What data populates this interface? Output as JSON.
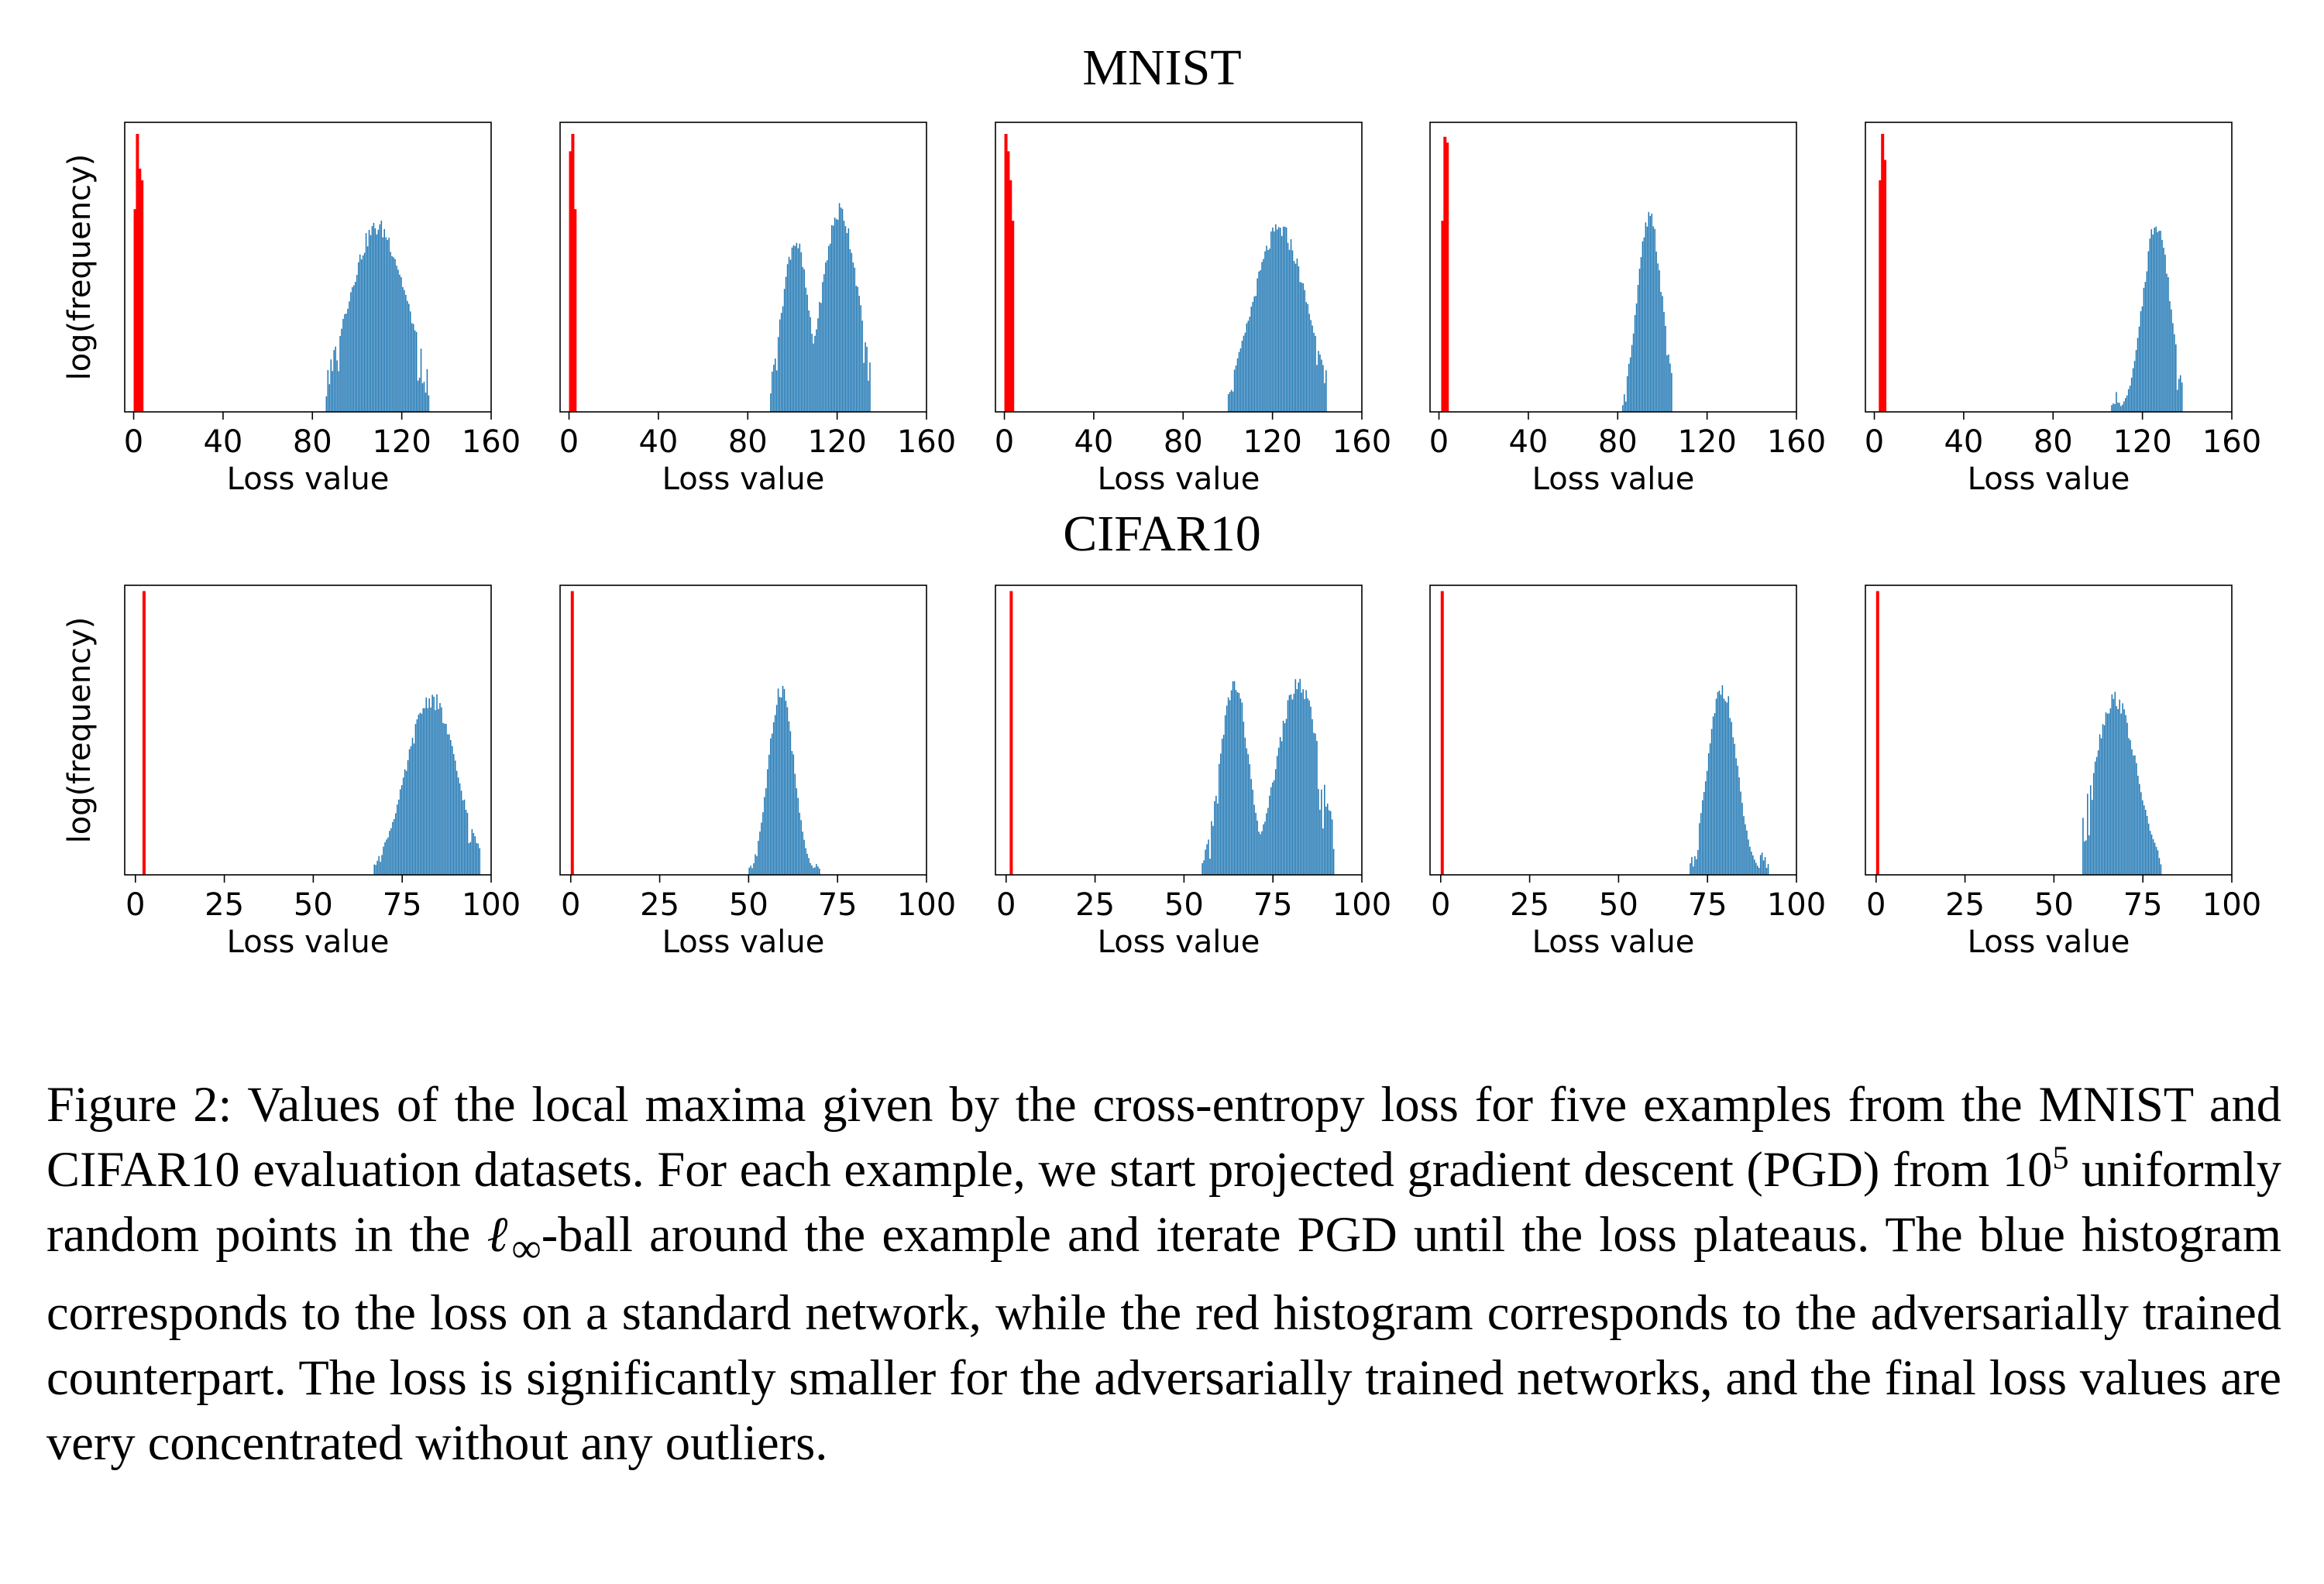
{
  "figure": {
    "row_titles": [
      "MNIST",
      "CIFAR10"
    ],
    "ylabel": "log(frequency)",
    "xlabel": "Loss value",
    "colors": {
      "standard": "#1f77b4",
      "adversarial": "#ff0000"
    },
    "caption": {
      "label": "Figure 2:",
      "part1": "Values of the local maxima given by the cross-entropy loss for five examples from the MNIST and CIFAR10 evaluation datasets. For each example, we start projected gradient descent (PGD) from 10",
      "sup": "5",
      "part2": " uniformly random points in the ",
      "linf_l": "ℓ",
      "linf_inf": "∞",
      "part3": "-ball around the example and iterate PGD until the loss plateaus. The blue histogram corresponds to the loss on a standard network, while the red histogram corresponds to the adversarially trained counterpart. The loss is significantly smaller for the adversarially trained networks, and the final loss values are very concentrated without any outliers."
    }
  },
  "chart_data": [
    {
      "type": "histogram",
      "group": "MNIST",
      "example": 1,
      "xlabel": "Loss value",
      "ylabel": "log(frequency)",
      "xlim": [
        -4,
        160
      ],
      "xticks": [
        0,
        40,
        80,
        120,
        160
      ],
      "ylim": [
        0,
        1
      ],
      "grid": false,
      "series": [
        {
          "color": "#ff0000",
          "bins": [
            [
              0,
              0.7
            ],
            [
              1,
              0.96
            ],
            [
              2,
              0.84
            ],
            [
              3,
              0.8
            ]
          ]
        },
        {
          "color": "#1f77b4",
          "range": [
            86,
            132
          ],
          "peaks": [
            {
              "center": 109,
              "width": 13,
              "height": 0.67
            }
          ],
          "bins": []
        }
      ]
    },
    {
      "type": "histogram",
      "group": "MNIST",
      "example": 2,
      "xlabel": "Loss value",
      "xlim": [
        -4,
        160
      ],
      "xticks": [
        0,
        40,
        80,
        120,
        160
      ],
      "ylim": [
        0,
        1
      ],
      "grid": false,
      "series": [
        {
          "color": "#ff0000",
          "bins": [
            [
              0,
              0.9
            ],
            [
              1,
              0.96
            ],
            [
              2,
              0.7
            ]
          ]
        },
        {
          "color": "#1f77b4",
          "range": [
            90,
            135
          ],
          "peaks": [
            {
              "center": 101,
              "width": 6,
              "height": 0.62
            },
            {
              "center": 121,
              "width": 8,
              "height": 0.73
            }
          ],
          "bins": []
        }
      ]
    },
    {
      "type": "histogram",
      "group": "MNIST",
      "example": 3,
      "xlabel": "Loss value",
      "xlim": [
        -4,
        160
      ],
      "xticks": [
        0,
        40,
        80,
        120,
        160
      ],
      "ylim": [
        0,
        1
      ],
      "grid": false,
      "series": [
        {
          "color": "#ff0000",
          "bins": [
            [
              0,
              0.96
            ],
            [
              1,
              0.9
            ],
            [
              2,
              0.8
            ],
            [
              3,
              0.66
            ]
          ]
        },
        {
          "color": "#1f77b4",
          "range": [
            100,
            144
          ],
          "peaks": [
            {
              "center": 123,
              "width": 12,
              "height": 0.66
            }
          ],
          "bins": []
        }
      ]
    },
    {
      "type": "histogram",
      "group": "MNIST",
      "example": 4,
      "xlabel": "Loss value",
      "xlim": [
        -4,
        160
      ],
      "xticks": [
        0,
        40,
        80,
        120,
        160
      ],
      "ylim": [
        0,
        1
      ],
      "grid": false,
      "series": [
        {
          "color": "#ff0000",
          "bins": [
            [
              1,
              0.66
            ],
            [
              2,
              0.95
            ],
            [
              3,
              0.93
            ]
          ]
        },
        {
          "color": "#1f77b4",
          "range": [
            82,
            104
          ],
          "peaks": [
            {
              "center": 94,
              "width": 5.5,
              "height": 0.7
            }
          ],
          "bins": []
        }
      ]
    },
    {
      "type": "histogram",
      "group": "MNIST",
      "example": 5,
      "xlabel": "Loss value",
      "xlim": [
        -4,
        160
      ],
      "xticks": [
        0,
        40,
        80,
        120,
        160
      ],
      "ylim": [
        0,
        1
      ],
      "grid": false,
      "series": [
        {
          "color": "#ff0000",
          "bins": [
            [
              2,
              0.8
            ],
            [
              3,
              0.96
            ],
            [
              4,
              0.87
            ]
          ]
        },
        {
          "color": "#1f77b4",
          "range": [
            106,
            138
          ],
          "peaks": [
            {
              "center": 126,
              "width": 6,
              "height": 0.69
            }
          ],
          "bins": []
        }
      ]
    },
    {
      "type": "histogram",
      "group": "CIFAR10",
      "example": 1,
      "xlabel": "Loss value",
      "ylabel": "log(frequency)",
      "xlim": [
        -3,
        100
      ],
      "xticks": [
        0,
        25,
        50,
        75,
        100
      ],
      "ylim": [
        0,
        1
      ],
      "grid": false,
      "series": [
        {
          "color": "#ff0000",
          "bins": [
            [
              2,
              0.98
            ]
          ]
        },
        {
          "color": "#1f77b4",
          "range": [
            67,
            97
          ],
          "peaks": [
            {
              "center": 83,
              "width": 7,
              "height": 0.64
            }
          ],
          "bins": []
        }
      ]
    },
    {
      "type": "histogram",
      "group": "CIFAR10",
      "example": 2,
      "xlabel": "Loss value",
      "xlim": [
        -3,
        100
      ],
      "xticks": [
        0,
        25,
        50,
        75,
        100
      ],
      "ylim": [
        0,
        1
      ],
      "grid": false,
      "series": [
        {
          "color": "#ff0000",
          "bins": [
            [
              0,
              0.98
            ]
          ]
        },
        {
          "color": "#1f77b4",
          "range": [
            50,
            70
          ],
          "peaks": [
            {
              "center": 59,
              "width": 3.5,
              "height": 0.68
            }
          ],
          "bins": []
        }
      ]
    },
    {
      "type": "histogram",
      "group": "CIFAR10",
      "example": 3,
      "xlabel": "Loss value",
      "xlim": [
        -3,
        100
      ],
      "xticks": [
        0,
        25,
        50,
        75,
        100
      ],
      "ylim": [
        0,
        1
      ],
      "grid": false,
      "series": [
        {
          "color": "#ff0000",
          "bins": [
            [
              1,
              0.98
            ]
          ]
        },
        {
          "color": "#1f77b4",
          "range": [
            55,
            92
          ],
          "peaks": [
            {
              "center": 64,
              "width": 4,
              "height": 0.69
            },
            {
              "center": 82,
              "width": 6,
              "height": 0.69
            }
          ],
          "bins": []
        }
      ]
    },
    {
      "type": "histogram",
      "group": "CIFAR10",
      "example": 4,
      "xlabel": "Loss value",
      "xlim": [
        -3,
        100
      ],
      "xticks": [
        0,
        25,
        50,
        75,
        100
      ],
      "ylim": [
        0,
        1
      ],
      "grid": false,
      "series": [
        {
          "color": "#ff0000",
          "bins": [
            [
              0,
              0.98
            ]
          ]
        },
        {
          "color": "#1f77b4",
          "range": [
            70,
            92
          ],
          "peaks": [
            {
              "center": 79,
              "width": 4,
              "height": 0.68
            }
          ],
          "bins": []
        }
      ]
    },
    {
      "type": "histogram",
      "group": "CIFAR10",
      "example": 5,
      "xlabel": "Loss value",
      "xlim": [
        -3,
        100
      ],
      "xticks": [
        0,
        25,
        50,
        75,
        100
      ],
      "ylim": [
        0,
        1
      ],
      "grid": false,
      "series": [
        {
          "color": "#ff0000",
          "bins": [
            [
              0,
              0.98
            ]
          ]
        },
        {
          "color": "#1f77b4",
          "range": [
            58,
            80
          ],
          "peaks": [
            {
              "center": 67,
              "width": 6,
              "height": 0.64
            }
          ],
          "bins": []
        }
      ]
    }
  ]
}
